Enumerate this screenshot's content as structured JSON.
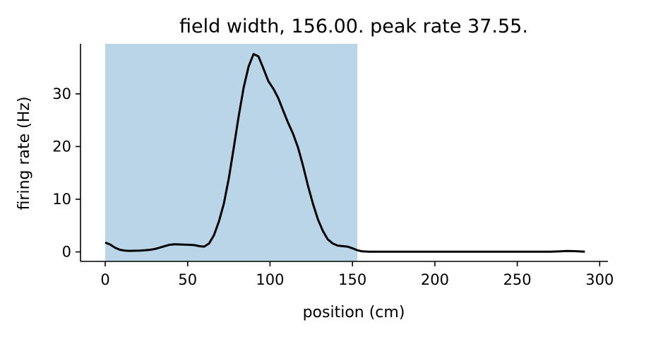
{
  "chart_data": {
    "type": "line",
    "title": "field width, 156.00. peak rate 37.55.",
    "xlabel": "position (cm)",
    "ylabel": "firing rate (Hz)",
    "xlim": [
      -15,
      305
    ],
    "ylim": [
      -1.8,
      39.5
    ],
    "xticks": [
      0,
      50,
      100,
      150,
      200,
      250,
      300
    ],
    "yticks": [
      0,
      10,
      20,
      30
    ],
    "xtick_labels": [
      "0",
      "50",
      "100",
      "150",
      "200",
      "250",
      "300"
    ],
    "ytick_labels": [
      "0",
      "10",
      "20",
      "30"
    ],
    "field_span": [
      0,
      153
    ],
    "field_color": "#bad4e8",
    "line_color": "#000000",
    "grid": false,
    "series": [
      {
        "x": [
          0,
          3,
          6,
          9,
          12,
          15,
          18,
          21,
          24,
          27,
          30,
          33,
          36,
          39,
          42,
          45,
          48,
          51,
          54,
          57,
          60,
          63,
          66,
          69,
          72,
          75,
          78,
          81,
          84,
          87,
          90,
          93,
          96,
          99,
          102,
          105,
          108,
          111,
          114,
          117,
          120,
          123,
          126,
          129,
          132,
          135,
          138,
          141,
          144,
          147,
          150,
          153,
          156,
          160,
          170,
          180,
          200,
          220,
          240,
          260,
          270,
          276,
          280,
          285,
          291
        ],
        "y": [
          1.8,
          1.4,
          0.8,
          0.4,
          0.25,
          0.2,
          0.22,
          0.25,
          0.3,
          0.4,
          0.55,
          0.8,
          1.1,
          1.35,
          1.45,
          1.42,
          1.38,
          1.35,
          1.3,
          1.1,
          1.0,
          1.6,
          3.2,
          5.8,
          9.2,
          14,
          19.8,
          25.8,
          31.2,
          35.2,
          37.55,
          37.1,
          34.8,
          32.4,
          31,
          29.2,
          26.8,
          24.5,
          22.4,
          19.8,
          16.4,
          12.6,
          9.2,
          6.2,
          4.0,
          2.4,
          1.6,
          1.2,
          1.1,
          1.0,
          0.7,
          0.3,
          0.1,
          0.05,
          0.05,
          0.05,
          0.05,
          0.05,
          0.05,
          0.05,
          0.05,
          0.1,
          0.18,
          0.15,
          0.05
        ]
      }
    ]
  }
}
